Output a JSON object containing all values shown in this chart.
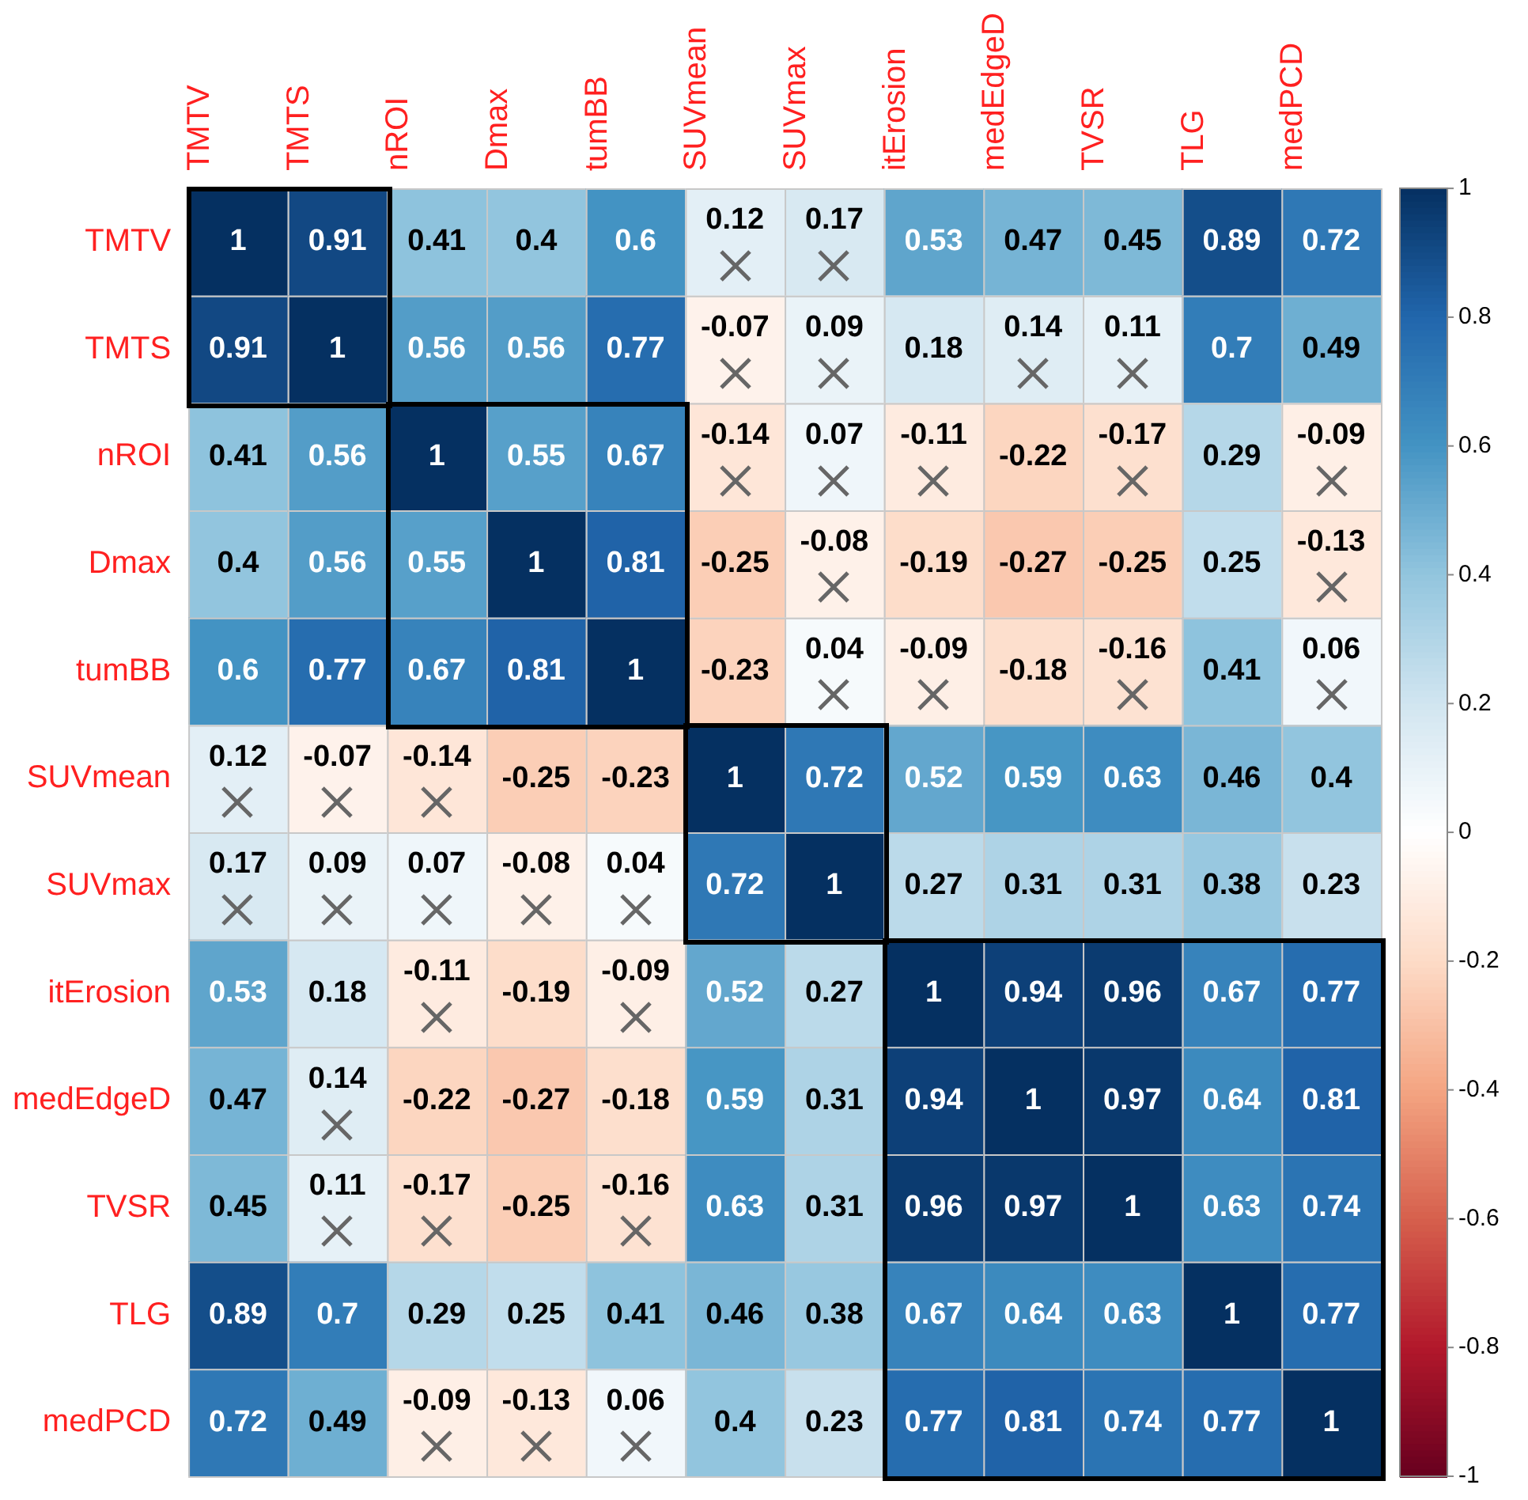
{
  "chart_data": {
    "type": "heatmap",
    "categories": [
      "TMTV",
      "TMTS",
      "nROI",
      "Dmax",
      "tumBB",
      "SUVmean",
      "SUVmax",
      "itErosion",
      "medEdgeD",
      "TVSR",
      "TLG",
      "medPCD"
    ],
    "y_categories": [
      "TMTV",
      "TMTS",
      "nROI",
      "Dmax",
      "tumBB",
      "SUVmean",
      "SUVmax",
      "itErosion",
      "medEdgeD",
      "TVSR",
      "TLG",
      "medPCD"
    ],
    "cells": [
      [
        1,
        0.91,
        0.41,
        0.4,
        0.6,
        0.12,
        0.17,
        0.53,
        0.47,
        0.45,
        0.89,
        0.72
      ],
      [
        0.91,
        1,
        0.56,
        0.56,
        0.77,
        -0.07,
        0.09,
        0.18,
        0.14,
        0.11,
        0.7,
        0.49
      ],
      [
        0.41,
        0.56,
        1,
        0.55,
        0.67,
        -0.14,
        0.07,
        -0.11,
        -0.22,
        -0.17,
        0.29,
        -0.09
      ],
      [
        0.4,
        0.56,
        0.55,
        1,
        0.81,
        -0.25,
        -0.08,
        -0.19,
        -0.27,
        -0.25,
        0.25,
        -0.13
      ],
      [
        0.6,
        0.77,
        0.67,
        0.81,
        1,
        -0.23,
        0.04,
        -0.09,
        -0.18,
        -0.16,
        0.41,
        0.06
      ],
      [
        0.12,
        -0.07,
        -0.14,
        -0.25,
        -0.23,
        1,
        0.72,
        0.52,
        0.59,
        0.63,
        0.46,
        0.4
      ],
      [
        0.17,
        0.09,
        0.07,
        -0.08,
        0.04,
        0.72,
        1,
        0.27,
        0.31,
        0.31,
        0.38,
        0.23
      ],
      [
        0.53,
        0.18,
        -0.11,
        -0.19,
        -0.09,
        0.52,
        0.27,
        1,
        0.94,
        0.96,
        0.67,
        0.77
      ],
      [
        0.47,
        0.14,
        -0.22,
        -0.27,
        -0.18,
        0.59,
        0.31,
        0.94,
        1,
        0.97,
        0.64,
        0.81
      ],
      [
        0.45,
        0.11,
        -0.17,
        -0.25,
        -0.16,
        0.63,
        0.31,
        0.96,
        0.97,
        1,
        0.63,
        0.74
      ],
      [
        0.89,
        0.7,
        0.29,
        0.25,
        0.41,
        0.46,
        0.38,
        0.67,
        0.64,
        0.63,
        1,
        0.77
      ],
      [
        0.72,
        0.49,
        -0.09,
        -0.13,
        0.06,
        0.4,
        0.23,
        0.77,
        0.81,
        0.74,
        0.77,
        1
      ]
    ],
    "data_labels": true,
    "clim": [
      -1,
      1
    ],
    "cticks": [
      -1,
      -0.8,
      -0.6,
      -0.4,
      -0.2,
      0,
      0.2,
      0.4,
      0.6,
      0.8,
      1
    ]
  }
}
